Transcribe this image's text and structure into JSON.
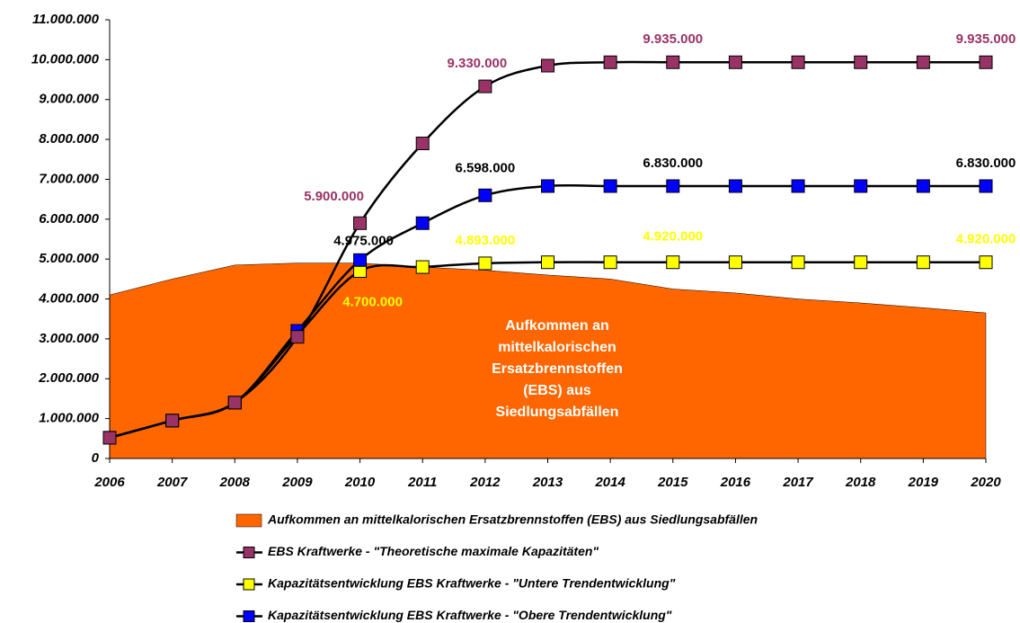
{
  "chart_data": {
    "type": "line",
    "categories": [
      "2006",
      "2007",
      "2008",
      "2009",
      "2010",
      "2011",
      "2012",
      "2013",
      "2014",
      "2015",
      "2016",
      "2017",
      "2018",
      "2019",
      "2020"
    ],
    "ylim": [
      0,
      11000000
    ],
    "yticks": [
      0,
      {
        "value": 1000000,
        "label": "1.000.000"
      },
      {
        "value": 2000000,
        "label": "2.000.000"
      },
      {
        "value": 3000000,
        "label": "3.000.000"
      },
      {
        "value": 4000000,
        "label": "4.000.000"
      },
      {
        "value": 5000000,
        "label": "5.000.000"
      },
      {
        "value": 6000000,
        "label": "6.000.000"
      },
      {
        "value": 7000000,
        "label": "7.000.000"
      },
      {
        "value": 8000000,
        "label": "8.000.000"
      },
      {
        "value": 9000000,
        "label": "9.000.000"
      },
      {
        "value": 10000000,
        "label": "10.000.000"
      },
      {
        "value": 11000000,
        "label": "11.000.000"
      }
    ],
    "grid": false,
    "legend": "bottom",
    "annotation": [
      "Aufkommen an",
      "mittelkalorischen",
      "Ersatzbrennstoffen",
      "(EBS) aus",
      "Siedlungsabfällen"
    ],
    "series": [
      {
        "name": "Aufkommen an mittelkalorischen Ersatzbrennstoffen (EBS) aus Siedlungsabfällen",
        "type": "area",
        "color": "#ff6600",
        "values": [
          4100000,
          4500000,
          4850000,
          4900000,
          4900000,
          4800000,
          4720000,
          4600000,
          4500000,
          4250000,
          4150000,
          4000000,
          3900000,
          3780000,
          3650000
        ]
      },
      {
        "name": "EBS Kraftwerke - \"Theoretische maximale Kapazitäten\"",
        "type": "line",
        "color": "#993366",
        "label_color": "#993366",
        "values": [
          520000,
          950000,
          1400000,
          3050000,
          5900000,
          7900000,
          9330000,
          9850000,
          9935000,
          9935000,
          9935000,
          9935000,
          9935000,
          9935000,
          9935000
        ],
        "value_labels": [
          null,
          null,
          null,
          null,
          "5.900.000",
          null,
          "9.330.000",
          null,
          null,
          "9.935.000",
          null,
          null,
          null,
          null,
          "9.935.000"
        ]
      },
      {
        "name": "Kapazitätsentwicklung EBS Kraftwerke - \"Untere Trendentwicklung\"",
        "type": "line",
        "color": "#ffff00",
        "label_color": "#ffff00",
        "values": [
          520000,
          950000,
          1400000,
          3100000,
          4700000,
          4800000,
          4893000,
          4920000,
          4920000,
          4920000,
          4920000,
          4920000,
          4920000,
          4920000,
          4920000
        ],
        "value_labels": [
          null,
          null,
          null,
          null,
          "4.700.000",
          null,
          "4.893.000",
          null,
          null,
          "4.920.000",
          null,
          null,
          null,
          null,
          "4.920.000"
        ]
      },
      {
        "name": "Kapazitätsentwicklung EBS Kraftwerke - \"Obere Trendentwicklung\"",
        "type": "line",
        "color": "#0000ff",
        "label_color": "#000000",
        "values": [
          520000,
          950000,
          1400000,
          3200000,
          4975000,
          5900000,
          6598000,
          6830000,
          6830000,
          6830000,
          6830000,
          6830000,
          6830000,
          6830000,
          6830000
        ],
        "value_labels": [
          null,
          null,
          null,
          null,
          "4.975.000",
          null,
          "6.598.000",
          null,
          null,
          "6.830.000",
          null,
          null,
          null,
          null,
          "6.830.000"
        ]
      }
    ]
  }
}
